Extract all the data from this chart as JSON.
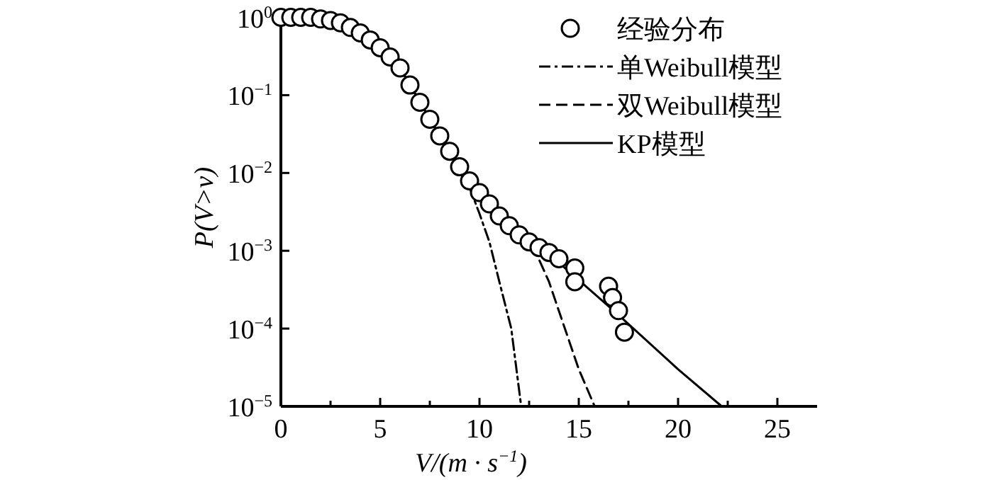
{
  "chart_data": {
    "type": "line",
    "xlabel": "V/(m · s$^{−1}$)",
    "ylabel": "P(V>v)",
    "xlim": [
      0,
      27
    ],
    "ylim": [
      1e-05,
      1.3
    ],
    "log": "y",
    "xticks": [
      0,
      {
        "value": 2.5,
        "label": null
      },
      5,
      {
        "value": 7.5,
        "label": null
      },
      10,
      {
        "value": 12.5,
        "label": null
      },
      15,
      {
        "value": 17.5,
        "label": null
      },
      20,
      {
        "value": 22.5,
        "label": null
      },
      25
    ],
    "yticks": [
      {
        "value": 1,
        "label": "10$^{0}$"
      },
      {
        "value": 0.1,
        "label": "10$^{−1}$"
      },
      {
        "value": 0.01,
        "label": "10$^{−2}$"
      },
      {
        "value": 0.001,
        "label": "10$^{−3}$"
      },
      {
        "value": 0.0001,
        "label": "10$^{−4}$"
      },
      {
        "value": 1e-05,
        "label": "10$^{−5}$"
      }
    ],
    "legend": "top right",
    "grid": false,
    "series": [
      {
        "name": "经验分布",
        "type": "scatter",
        "marker": "circle",
        "color": "#000000",
        "x": [
          0,
          0.5,
          1,
          1.5,
          2,
          2.5,
          3,
          3.5,
          4,
          4.5,
          5,
          5.5,
          6,
          6.5,
          7,
          7.5,
          8,
          8.5,
          9,
          9.5,
          10,
          10.5,
          11,
          11.5,
          12,
          12.5,
          13,
          13.5,
          14,
          14.8,
          14.8,
          16.5,
          16.7,
          17,
          17.3
        ],
        "values": [
          1,
          1,
          1,
          1,
          0.955,
          0.912,
          0.851,
          0.741,
          0.631,
          0.513,
          0.407,
          0.309,
          0.224,
          0.135,
          0.081,
          0.049,
          0.03,
          0.019,
          0.012,
          0.0079,
          0.0056,
          0.004,
          0.0028,
          0.0021,
          0.0016,
          0.0013,
          0.0011,
          0.00095,
          0.00079,
          0.0006,
          0.0004,
          0.00035,
          0.00025,
          0.00017,
          9e-05
        ]
      },
      {
        "name": "单Weibull模型",
        "type": "line",
        "line_style": "dashdot",
        "color": "#000000",
        "x": [
          0,
          2,
          4,
          6,
          8,
          9,
          9.5,
          10,
          10.5,
          11,
          11.6,
          12.1
        ],
        "values": [
          1,
          0.955,
          0.631,
          0.224,
          0.03,
          0.011,
          0.0065,
          0.003,
          0.0013,
          0.0004,
          0.0001,
          1e-05
        ]
      },
      {
        "name": "双Weibull模型",
        "type": "line",
        "line_style": "dashed",
        "color": "#000000",
        "x": [
          0,
          2,
          4,
          6,
          8,
          9,
          10,
          11,
          12,
          12.8,
          13.5,
          14.3,
          15,
          15.8
        ],
        "values": [
          1,
          0.955,
          0.631,
          0.224,
          0.03,
          0.012,
          0.0055,
          0.0029,
          0.0016,
          0.001,
          0.0004,
          0.0001,
          3e-05,
          1e-05
        ]
      },
      {
        "name": "KP模型",
        "type": "line",
        "line_style": "solid",
        "color": "#000000",
        "x": [
          0,
          2,
          4,
          6,
          8,
          9,
          10,
          11,
          12,
          13,
          14,
          15,
          17,
          20,
          22.2
        ],
        "values": [
          1,
          0.955,
          0.631,
          0.224,
          0.03,
          0.012,
          0.0055,
          0.0029,
          0.0017,
          0.0011,
          0.0007,
          0.00042,
          0.00015,
          3e-05,
          1e-05
        ]
      }
    ]
  }
}
